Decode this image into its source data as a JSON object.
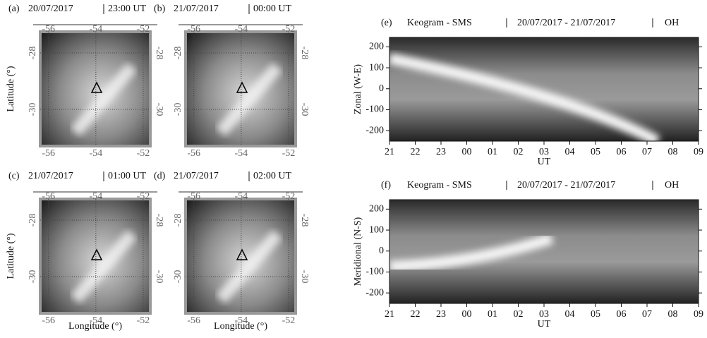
{
  "maps": [
    {
      "label": "(a)",
      "date": "20/07/2017",
      "time": "23:00 UT"
    },
    {
      "label": "(b)",
      "date": "21/07/2017",
      "time": "00:00 UT"
    },
    {
      "label": "(c)",
      "date": "21/07/2017",
      "time": "01:00 UT"
    },
    {
      "label": "(d)",
      "date": "21/07/2017",
      "time": "02:00 UT"
    }
  ],
  "map_axes": {
    "xlabel": "Longitude (°)",
    "ylabel": "Latitude (°)",
    "xlim": [
      -56.35,
      -51.7
    ],
    "xticks": [
      -56,
      -54,
      -52
    ],
    "ylim": [
      -27.25,
      -31.3
    ],
    "yticks": [
      -28,
      -30
    ]
  },
  "keograms": [
    {
      "label": "(e)",
      "title": "Keogram - SMS",
      "dates": "20/07/2017 - 21/07/2017",
      "channel": "OH",
      "ylabel": "Zonal (W-E)"
    },
    {
      "label": "(f)",
      "title": "Keogram - SMS",
      "dates": "20/07/2017 - 21/07/2017",
      "channel": "OH",
      "ylabel": "Meridional (N-S)"
    }
  ],
  "keogram_axes": {
    "xlabel": "UT",
    "xlim": [
      21,
      33
    ],
    "xticks": [
      {
        "value": 21,
        "label": "21"
      },
      {
        "value": 22,
        "label": "22"
      },
      {
        "value": 23,
        "label": "23"
      },
      {
        "value": 24,
        "label": "00"
      },
      {
        "value": 25,
        "label": "01"
      },
      {
        "value": 26,
        "label": "02"
      },
      {
        "value": 27,
        "label": "03"
      },
      {
        "value": 28,
        "label": "04"
      },
      {
        "value": 29,
        "label": "05"
      },
      {
        "value": 30,
        "label": "06"
      },
      {
        "value": 31,
        "label": "07"
      },
      {
        "value": 32,
        "label": "08"
      },
      {
        "value": 33,
        "label": "09"
      }
    ],
    "ylim": [
      -250,
      245
    ],
    "yticks": [
      -200,
      -100,
      0,
      100,
      200
    ]
  }
}
